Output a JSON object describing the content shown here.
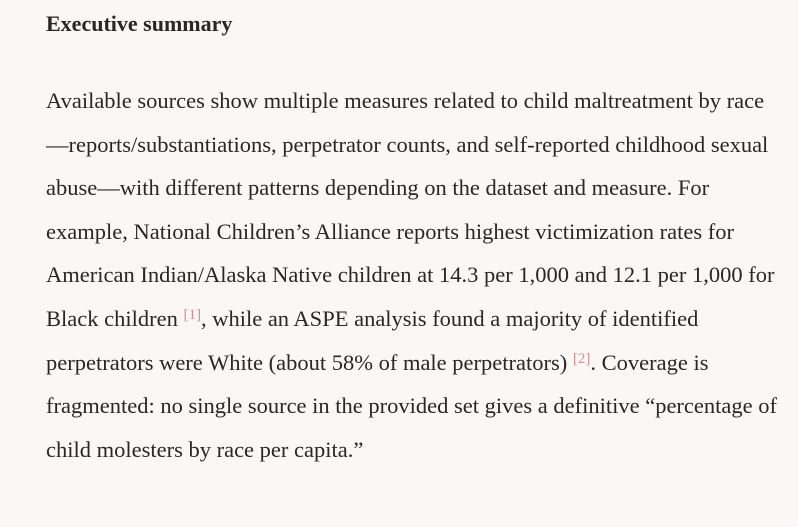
{
  "summary": {
    "heading": "Executive summary",
    "paragraph": [
      {
        "text": "Available sources show multiple measures related to child maltreatment by race—reports/substantiations, perpetrator counts, and self-reported childhood sexual abuse—with different patterns depending on the dataset and measure. For example, National Children’s Alliance reports highest victimization rates for American Indian/Alaska Native children at 14.3 per 1,000 and 12.1 per 1,000 for Black children "
      },
      {
        "citation": "[1]"
      },
      {
        "text": ", while an ASPE analysis found a majority of identified perpetrators were White (about 58% of male perpetrators) "
      },
      {
        "citation": "[2]"
      },
      {
        "text": ". Coverage is fragmented: no single source in the provided set gives a definitive “percentage of child molesters by race per capita.”"
      }
    ]
  }
}
